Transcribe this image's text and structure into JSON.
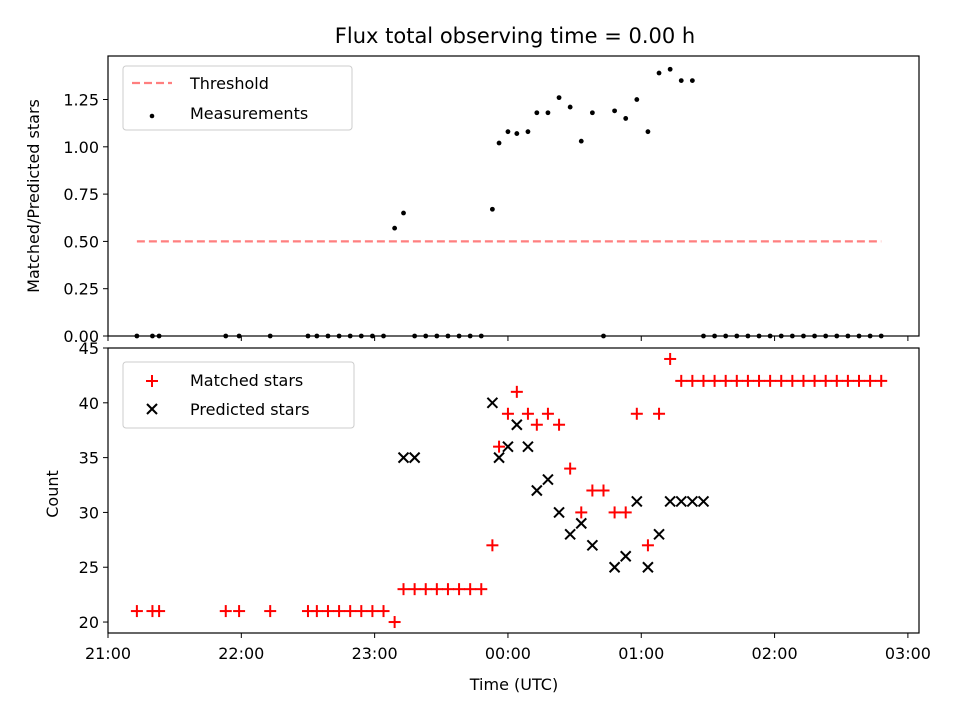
{
  "title": "Flux total observing time = 0.00 h",
  "colors": {
    "threshold": "#ff7f7f",
    "measurements": "#000000",
    "matched": "#ff0000",
    "predicted": "#000000"
  },
  "chart_data": [
    {
      "type": "scatter",
      "title": "Flux total observing time = 0.00 h",
      "xlabel": "",
      "ylabel": "Matched/Predicted stars",
      "xlim": [
        "21:00",
        "03:05"
      ],
      "ylim": [
        0,
        1.48
      ],
      "xticks": [
        "21:00",
        "22:00",
        "23:00",
        "00:00",
        "01:00",
        "02:00",
        "03:00"
      ],
      "yticks": [
        "0.00",
        "0.25",
        "0.50",
        "0.75",
        "1.00",
        "1.25"
      ],
      "legend_position": "top-left",
      "threshold": {
        "name": "Threshold",
        "x": [
          "21:13",
          "02:48"
        ],
        "y": 0.5,
        "style": "dashed"
      },
      "series": [
        {
          "name": "Measurements",
          "x": [
            "21:13",
            "21:20",
            "21:23",
            "21:53",
            "21:59",
            "22:13",
            "22:30",
            "22:34",
            "22:39",
            "22:44",
            "22:49",
            "22:54",
            "22:59",
            "23:04",
            "23:09",
            "23:13",
            "23:18",
            "23:23",
            "23:28",
            "23:33",
            "23:38",
            "23:43",
            "23:48",
            "23:53",
            "23:56",
            "00:00",
            "00:04",
            "00:09",
            "00:13",
            "00:18",
            "00:23",
            "00:28",
            "00:33",
            "00:38",
            "00:43",
            "00:48",
            "00:53",
            "00:58",
            "01:03",
            "01:08",
            "01:13",
            "01:18",
            "01:23",
            "01:28",
            "01:33",
            "01:38",
            "01:43",
            "01:48",
            "01:53",
            "01:58",
            "02:03",
            "02:08",
            "02:13",
            "02:18",
            "02:23",
            "02:28",
            "02:33",
            "02:38",
            "02:43",
            "02:48"
          ],
          "y": [
            0,
            0,
            0,
            0,
            0,
            0,
            0,
            0,
            0,
            0,
            0,
            0,
            0,
            0,
            0.57,
            0.65,
            0,
            0,
            0,
            0,
            0,
            0,
            0,
            0.67,
            1.02,
            1.08,
            1.07,
            1.08,
            1.18,
            1.18,
            1.26,
            1.21,
            1.03,
            1.18,
            0,
            1.19,
            1.15,
            1.25,
            1.08,
            1.39,
            1.41,
            1.35,
            1.35,
            0,
            0,
            0,
            0,
            0,
            0,
            0,
            0,
            0,
            0,
            0,
            0,
            0,
            0,
            0,
            0,
            0
          ]
        }
      ]
    },
    {
      "type": "scatter",
      "title": "",
      "xlabel": "Time (UTC)",
      "ylabel": "Count",
      "xlim": [
        "21:00",
        "03:05"
      ],
      "ylim": [
        19,
        45
      ],
      "xticks": [
        "21:00",
        "22:00",
        "23:00",
        "00:00",
        "01:00",
        "02:00",
        "03:00"
      ],
      "yticks": [
        "20",
        "25",
        "30",
        "35",
        "40",
        "45"
      ],
      "legend_position": "top-left",
      "series": [
        {
          "name": "Matched stars",
          "marker": "plus",
          "x": [
            "21:13",
            "21:20",
            "21:23",
            "21:53",
            "21:59",
            "22:13",
            "22:30",
            "22:34",
            "22:39",
            "22:44",
            "22:49",
            "22:54",
            "22:59",
            "23:04",
            "23:09",
            "23:13",
            "23:18",
            "23:23",
            "23:28",
            "23:33",
            "23:38",
            "23:43",
            "23:48",
            "23:53",
            "23:56",
            "00:00",
            "00:04",
            "00:09",
            "00:13",
            "00:18",
            "00:23",
            "00:28",
            "00:33",
            "00:38",
            "00:43",
            "00:48",
            "00:53",
            "00:58",
            "01:03",
            "01:08",
            "01:13",
            "01:18",
            "01:23",
            "01:28",
            "01:33",
            "01:38",
            "01:43",
            "01:48",
            "01:53",
            "01:58",
            "02:03",
            "02:08",
            "02:13",
            "02:18",
            "02:23",
            "02:28",
            "02:33",
            "02:38",
            "02:43",
            "02:48"
          ],
          "y": [
            21,
            21,
            21,
            21,
            21,
            21,
            21,
            21,
            21,
            21,
            21,
            21,
            21,
            21,
            20,
            23,
            23,
            23,
            23,
            23,
            23,
            23,
            23,
            27,
            36,
            39,
            41,
            39,
            38,
            39,
            38,
            34,
            30,
            32,
            32,
            30,
            30,
            39,
            27,
            39,
            44,
            42,
            42,
            42,
            42,
            42,
            42,
            42,
            42,
            42,
            42,
            42,
            42,
            42,
            42,
            42,
            42,
            42,
            42,
            42
          ]
        },
        {
          "name": "Predicted stars",
          "marker": "x",
          "x": [
            "23:13",
            "23:18",
            "23:53",
            "23:56",
            "00:00",
            "00:04",
            "00:09",
            "00:13",
            "00:18",
            "00:23",
            "00:28",
            "00:33",
            "00:38",
            "00:48",
            "00:53",
            "00:58",
            "01:03",
            "01:08",
            "01:13",
            "01:18",
            "01:23",
            "01:28"
          ],
          "y": [
            35,
            35,
            40,
            35,
            36,
            38,
            36,
            32,
            33,
            30,
            28,
            29,
            27,
            25,
            26,
            31,
            25,
            28,
            31,
            31,
            31,
            31
          ]
        }
      ]
    }
  ]
}
